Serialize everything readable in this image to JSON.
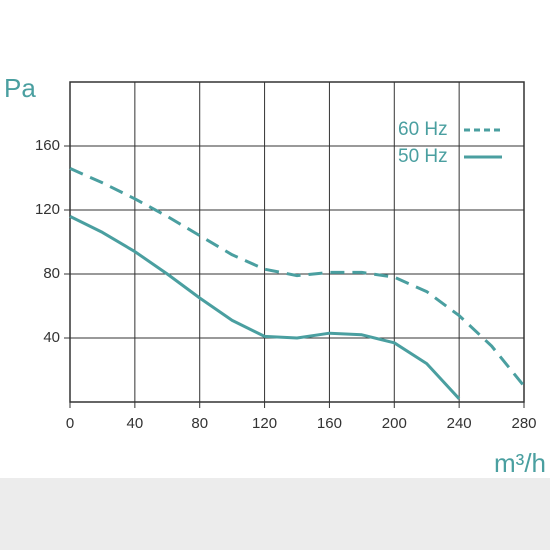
{
  "chart_data": {
    "type": "line",
    "y_label": "Pa",
    "x_label": "m³/h",
    "x": [
      0,
      20,
      40,
      60,
      80,
      100,
      120,
      140,
      160,
      180,
      200,
      220,
      240,
      260,
      280
    ],
    "series": [
      {
        "name": "60 Hz",
        "color": "#4a9fa0",
        "dash": true,
        "values": [
          146,
          137,
          127,
          116,
          104,
          92,
          83,
          79,
          81,
          81,
          78,
          69,
          54,
          35,
          10
        ]
      },
      {
        "name": "50 Hz",
        "color": "#4a9fa0",
        "dash": false,
        "values": [
          116,
          106,
          94,
          80,
          65,
          51,
          41,
          40,
          43,
          42,
          37,
          24,
          2,
          null,
          null
        ]
      }
    ],
    "xlim": [
      0,
      280
    ],
    "ylim": [
      0,
      200
    ],
    "xticks": [
      0,
      40,
      80,
      120,
      160,
      200,
      240,
      280
    ],
    "yticks": [
      40,
      80,
      120,
      160
    ],
    "grid": true
  }
}
